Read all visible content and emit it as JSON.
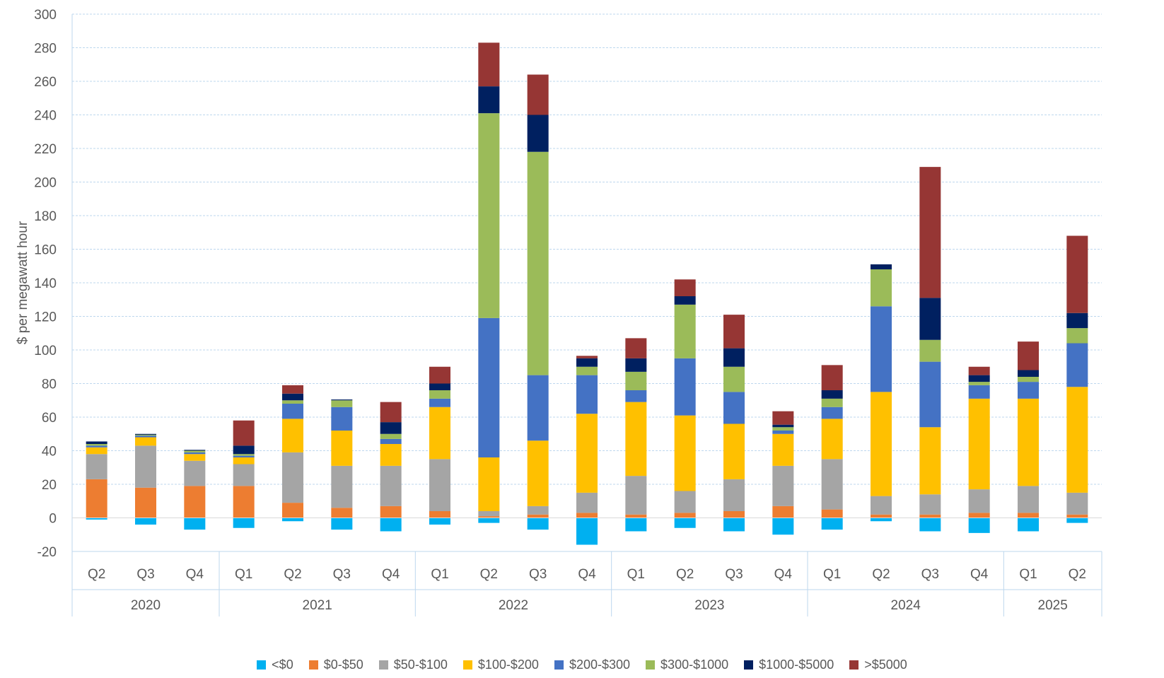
{
  "chart_data": {
    "type": "bar",
    "stacked": true,
    "ylabel": "$ per megawatt hour",
    "ylim": [
      -20,
      300
    ],
    "yticks": [
      -20,
      0,
      20,
      40,
      60,
      80,
      100,
      120,
      140,
      160,
      180,
      200,
      220,
      240,
      260,
      280,
      300
    ],
    "grid": true,
    "legend_position": "bottom",
    "categories": [
      "Q2",
      "Q3",
      "Q4",
      "Q1",
      "Q2",
      "Q3",
      "Q4",
      "Q1",
      "Q2",
      "Q3",
      "Q4",
      "Q1",
      "Q2",
      "Q3",
      "Q4",
      "Q1",
      "Q2",
      "Q3",
      "Q4",
      "Q1",
      "Q2"
    ],
    "years": [
      {
        "label": "2020",
        "count": 3
      },
      {
        "label": "2021",
        "count": 4
      },
      {
        "label": "2022",
        "count": 4
      },
      {
        "label": "2023",
        "count": 4
      },
      {
        "label": "2024",
        "count": 4
      },
      {
        "label": "2025",
        "count": 2
      }
    ],
    "series": [
      {
        "name": "<$0",
        "color": "#00B0F0",
        "values": [
          -1,
          -4,
          -7,
          -6,
          -2,
          -7,
          -8,
          -4,
          -3,
          -7,
          -16,
          -8,
          -6,
          -8,
          -10,
          -7,
          -2,
          -8,
          -9,
          -8,
          -3
        ]
      },
      {
        "name": "$0-$50",
        "color": "#ED7D31",
        "values": [
          23,
          18,
          19,
          19,
          9,
          6,
          7,
          4,
          1,
          2,
          3,
          2,
          3,
          4,
          7,
          5,
          2,
          2,
          3,
          3,
          2
        ]
      },
      {
        "name": "$50-$100",
        "color": "#A5A5A5",
        "values": [
          15,
          25,
          15,
          13,
          30,
          25,
          24,
          31,
          3,
          5,
          12,
          23,
          13,
          19,
          24,
          30,
          11,
          12,
          14,
          16,
          13
        ]
      },
      {
        "name": "$100-$200",
        "color": "#FFC000",
        "values": [
          4,
          5,
          4,
          4,
          20,
          21,
          13,
          31,
          32,
          39,
          47,
          44,
          45,
          33,
          19,
          24,
          62,
          40,
          54,
          52,
          63
        ]
      },
      {
        "name": "$200-$300",
        "color": "#4472C4",
        "values": [
          1,
          1,
          1,
          1,
          9,
          14,
          3,
          5,
          83,
          39,
          23,
          7,
          34,
          19,
          2,
          7,
          51,
          39,
          8,
          10,
          26
        ]
      },
      {
        "name": "$300-$1000",
        "color": "#9BBB59",
        "values": [
          1,
          0.5,
          1,
          1,
          2,
          4,
          3,
          5,
          122,
          133,
          5,
          11,
          32,
          15,
          2,
          5,
          22,
          13,
          2,
          3,
          9
        ]
      },
      {
        "name": "$1000-$5000",
        "color": "#002060",
        "values": [
          1.5,
          0.5,
          0.5,
          5,
          4,
          0.5,
          7,
          4,
          16,
          22,
          5,
          8,
          5,
          11,
          1.5,
          5,
          3,
          25,
          4,
          4,
          9
        ]
      },
      {
        "name": ">$5000",
        "color": "#963634",
        "values": [
          0,
          0,
          0,
          15,
          5,
          0,
          12,
          10,
          26,
          24,
          1.5,
          12,
          10,
          20,
          8,
          15,
          0,
          78,
          5,
          17,
          46
        ]
      }
    ]
  }
}
